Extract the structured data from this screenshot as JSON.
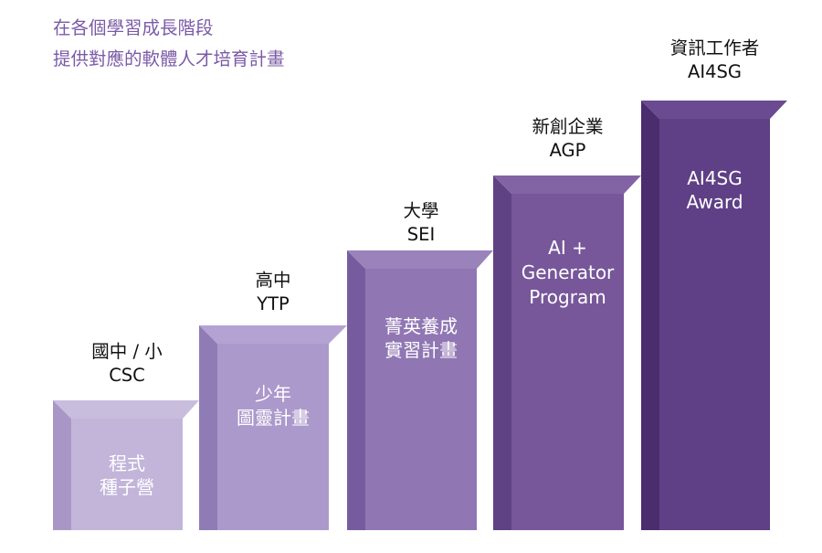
{
  "header": {
    "line1": "在各個學習成長階段",
    "line2": "提供對應的軟體人才培育計畫"
  },
  "steps": [
    {
      "label_line1": "國中 / 小",
      "label_line2": "CSC",
      "box_line1": "程式",
      "box_line2": "種子營",
      "box_line3": "",
      "front_color": "#c2b5d9",
      "top_color": "#c9bdde",
      "side_color": "#a897c6"
    },
    {
      "label_line1": "高中",
      "label_line2": "YTP",
      "box_line1": "少年",
      "box_line2": "圖靈計畫",
      "box_line3": "",
      "front_color": "#ab99cb",
      "top_color": "#b4a3d2",
      "side_color": "#8f7bb5"
    },
    {
      "label_line1": "大學",
      "label_line2": "SEI",
      "box_line1": "菁英養成",
      "box_line2": "實習計畫",
      "box_line3": "",
      "front_color": "#9077b3",
      "top_color": "#9a82bb",
      "side_color": "#765c9f"
    },
    {
      "label_line1": "新創企業",
      "label_line2": "AGP",
      "box_line1": "AI +",
      "box_line2": "Generator",
      "box_line3": "Program",
      "front_color": "#775799",
      "top_color": "#8263a3",
      "side_color": "#5f4283"
    },
    {
      "label_line1": "資訊工作者",
      "label_line2": "AI4SG",
      "box_line1": "AI4SG",
      "box_line2": "Award",
      "box_line3": "",
      "front_color": "#5f3f85",
      "top_color": "#6a4a90",
      "side_color": "#4b2d6e"
    }
  ]
}
